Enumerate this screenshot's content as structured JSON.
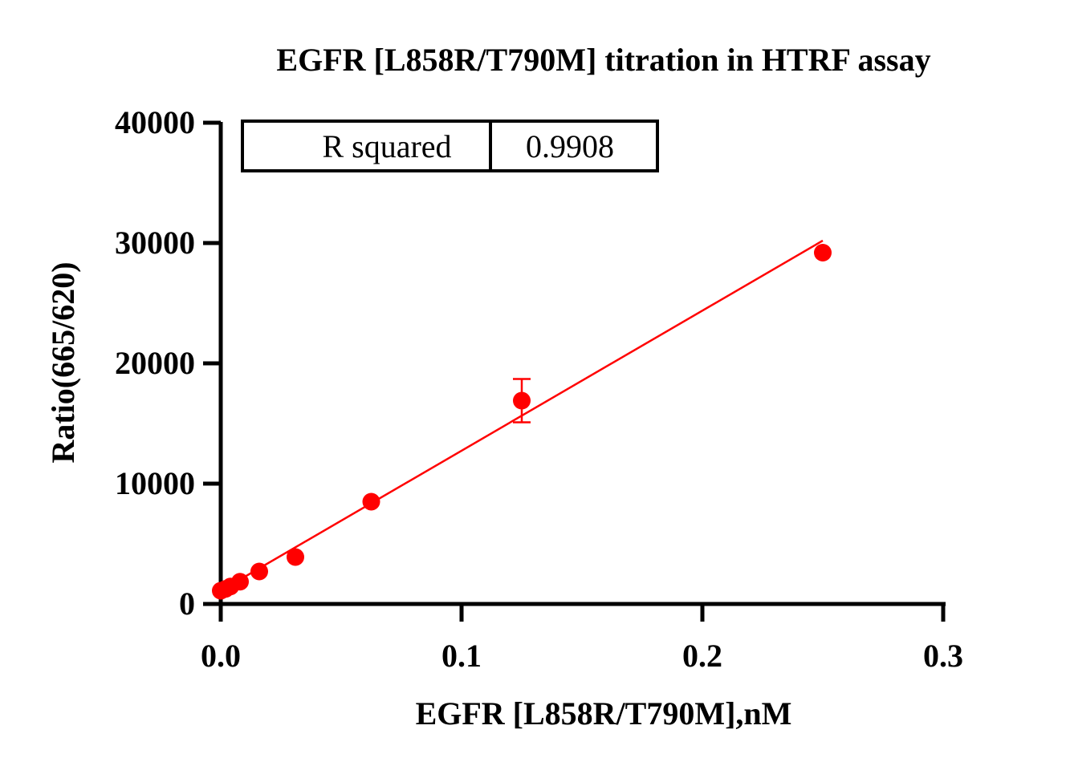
{
  "chart_data": {
    "type": "scatter",
    "title": "EGFR [L858R/T790M] titration in HTRF assay",
    "xlabel": "EGFR [L858R/T790M],nM",
    "ylabel": "Ratio(665/620)",
    "xlim": [
      0,
      0.3
    ],
    "ylim": [
      0,
      40000
    ],
    "x_ticks": [
      "0.0",
      "0.1",
      "0.2",
      "0.3"
    ],
    "y_ticks": [
      "0",
      "10000",
      "20000",
      "30000",
      "40000"
    ],
    "grid": false,
    "color": "#ff0000",
    "series": [
      {
        "points": [
          {
            "x": 0.0,
            "y": 1100,
            "err": 0
          },
          {
            "x": 0.002,
            "y": 1250,
            "err": 0
          },
          {
            "x": 0.004,
            "y": 1450,
            "err": 0
          },
          {
            "x": 0.008,
            "y": 1850,
            "err": 0
          },
          {
            "x": 0.016,
            "y": 2700,
            "err": 0
          },
          {
            "x": 0.031,
            "y": 3900,
            "err": 0
          },
          {
            "x": 0.0625,
            "y": 8500,
            "err": 0
          },
          {
            "x": 0.125,
            "y": 16900,
            "err": 1800
          },
          {
            "x": 0.25,
            "y": 29200,
            "err": 0
          }
        ]
      }
    ],
    "fit_line": {
      "x": [
        0.0,
        0.25
      ],
      "y": [
        1100,
        30200
      ]
    },
    "annotation": {
      "label": "R squared",
      "value": "0.9908"
    }
  }
}
